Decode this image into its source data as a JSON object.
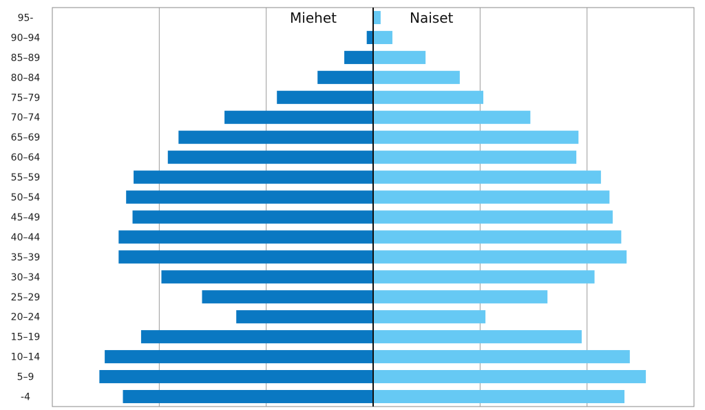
{
  "chart_data": {
    "type": "bar",
    "orientation": "horizontal",
    "layout": "population-pyramid",
    "categories": [
      "95-",
      "90–94",
      "85–89",
      "80–84",
      "75–79",
      "70–74",
      "65–69",
      "60–64",
      "55–59",
      "50–54",
      "45–49",
      "40–44",
      "35–39",
      "30–34",
      "25–29",
      "20–24",
      "15–19",
      "10–14",
      "5–9",
      "-4"
    ],
    "series": [
      {
        "name": "Miehet",
        "side": "left",
        "color": "#0a78c2",
        "values": [
          0,
          0.6,
          2.7,
          5.2,
          9.0,
          13.9,
          18.2,
          19.2,
          22.4,
          23.1,
          22.5,
          23.8,
          23.8,
          19.8,
          16.0,
          12.8,
          21.7,
          25.1,
          25.6,
          23.4
        ]
      },
      {
        "name": "Naiset",
        "side": "right",
        "color": "#66c9f4",
        "values": [
          0.7,
          1.8,
          4.9,
          8.1,
          10.3,
          14.7,
          19.2,
          19.0,
          21.3,
          22.1,
          22.4,
          23.2,
          23.7,
          20.7,
          16.3,
          10.5,
          19.5,
          24.0,
          25.5,
          23.5
        ]
      }
    ],
    "xlim": [
      -30,
      30
    ],
    "x_gridlines": [
      -20,
      -10,
      0,
      10,
      20
    ],
    "grid": true,
    "legend": "inline-top",
    "center_line_color": "#111111",
    "grid_color": "#999999",
    "frame_color": "#888888"
  }
}
